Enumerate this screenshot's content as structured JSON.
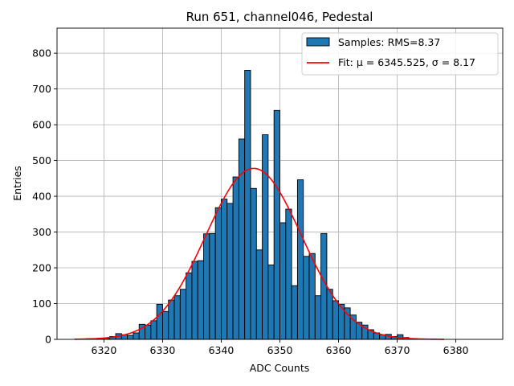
{
  "chart_data": {
    "type": "bar",
    "title": "Run 651, channel046, Pedestal",
    "xlabel": "ADC Counts",
    "ylabel": "Entries",
    "xlim": [
      6312,
      6388
    ],
    "ylim": [
      0,
      870
    ],
    "xticks": [
      6320,
      6330,
      6340,
      6350,
      6360,
      6370,
      6380
    ],
    "yticks": [
      0,
      100,
      200,
      300,
      400,
      500,
      600,
      700,
      800
    ],
    "grid": true,
    "legend_position": "top-right",
    "bin_width": 1,
    "bins": [
      {
        "x": 6316,
        "y": 1
      },
      {
        "x": 6317,
        "y": 2
      },
      {
        "x": 6318,
        "y": 1
      },
      {
        "x": 6319,
        "y": 2
      },
      {
        "x": 6320,
        "y": 3
      },
      {
        "x": 6321,
        "y": 8
      },
      {
        "x": 6322,
        "y": 16
      },
      {
        "x": 6323,
        "y": 13
      },
      {
        "x": 6324,
        "y": 11
      },
      {
        "x": 6325,
        "y": 18
      },
      {
        "x": 6326,
        "y": 42
      },
      {
        "x": 6327,
        "y": 40
      },
      {
        "x": 6328,
        "y": 52
      },
      {
        "x": 6329,
        "y": 98
      },
      {
        "x": 6330,
        "y": 78
      },
      {
        "x": 6331,
        "y": 110
      },
      {
        "x": 6332,
        "y": 122
      },
      {
        "x": 6333,
        "y": 140
      },
      {
        "x": 6334,
        "y": 186
      },
      {
        "x": 6335,
        "y": 218
      },
      {
        "x": 6336,
        "y": 220
      },
      {
        "x": 6337,
        "y": 295
      },
      {
        "x": 6338,
        "y": 296
      },
      {
        "x": 6339,
        "y": 368
      },
      {
        "x": 6340,
        "y": 392
      },
      {
        "x": 6341,
        "y": 380
      },
      {
        "x": 6342,
        "y": 454
      },
      {
        "x": 6343,
        "y": 560
      },
      {
        "x": 6344,
        "y": 752
      },
      {
        "x": 6345,
        "y": 422
      },
      {
        "x": 6346,
        "y": 250
      },
      {
        "x": 6347,
        "y": 572
      },
      {
        "x": 6348,
        "y": 208
      },
      {
        "x": 6349,
        "y": 640
      },
      {
        "x": 6350,
        "y": 326
      },
      {
        "x": 6351,
        "y": 364
      },
      {
        "x": 6352,
        "y": 150
      },
      {
        "x": 6353,
        "y": 446
      },
      {
        "x": 6354,
        "y": 232
      },
      {
        "x": 6355,
        "y": 240
      },
      {
        "x": 6356,
        "y": 122
      },
      {
        "x": 6357,
        "y": 296
      },
      {
        "x": 6358,
        "y": 140
      },
      {
        "x": 6359,
        "y": 108
      },
      {
        "x": 6360,
        "y": 98
      },
      {
        "x": 6361,
        "y": 88
      },
      {
        "x": 6362,
        "y": 68
      },
      {
        "x": 6363,
        "y": 48
      },
      {
        "x": 6364,
        "y": 40
      },
      {
        "x": 6365,
        "y": 27
      },
      {
        "x": 6366,
        "y": 18
      },
      {
        "x": 6367,
        "y": 13
      },
      {
        "x": 6368,
        "y": 14
      },
      {
        "x": 6369,
        "y": 8
      },
      {
        "x": 6370,
        "y": 13
      },
      {
        "x": 6371,
        "y": 5
      },
      {
        "x": 6372,
        "y": 2
      },
      {
        "x": 6373,
        "y": 1
      },
      {
        "x": 6374,
        "y": 1
      }
    ],
    "series": [
      {
        "name": "Samples: RMS=8.37",
        "kind": "histogram",
        "color": "#1f77b4",
        "edgecolor": "#000000"
      },
      {
        "name": "Fit: μ = 6345.525, σ = 8.17",
        "kind": "gaussian",
        "color": "#ff0000",
        "mu": 6345.525,
        "sigma": 8.17,
        "amplitude": 478,
        "x_range": [
          6315,
          6378
        ]
      }
    ]
  }
}
